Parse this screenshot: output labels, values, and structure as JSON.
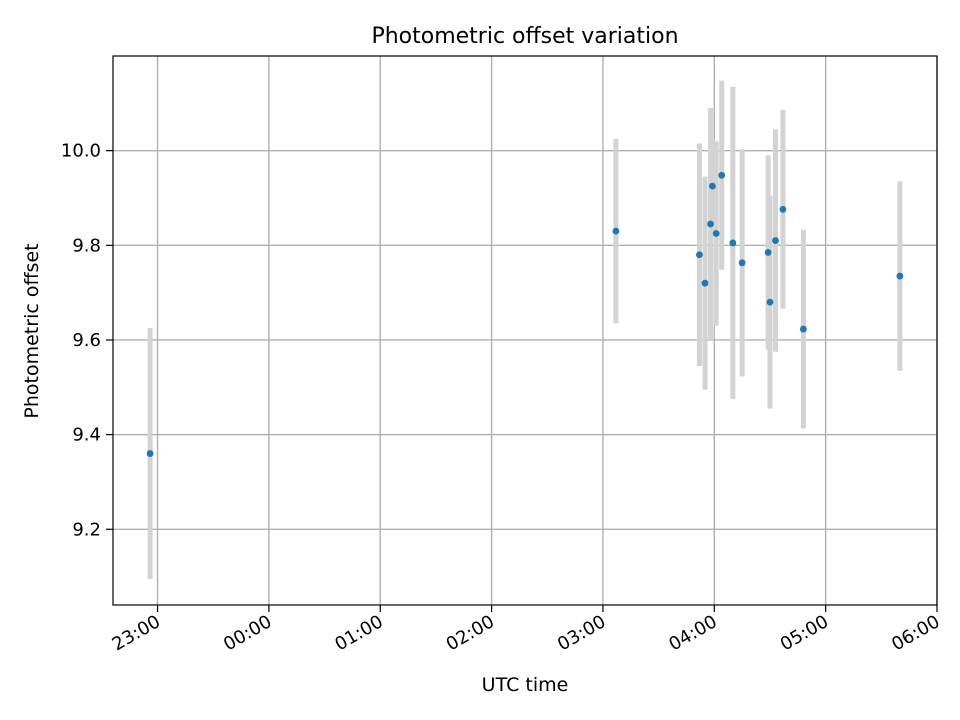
{
  "chart_data": {
    "type": "scatter",
    "title": "Photometric offset variation",
    "xlabel": "UTC time",
    "ylabel": "Photometric offset",
    "grid": true,
    "xlim": [
      "22:36",
      "06:00"
    ],
    "ylim": [
      9.04,
      10.2
    ],
    "x_ticks": [
      "23:00",
      "00:00",
      "01:00",
      "02:00",
      "03:00",
      "04:00",
      "05:00",
      "06:00"
    ],
    "y_ticks": [
      "9.2",
      "9.4",
      "9.6",
      "9.8",
      "10.0"
    ],
    "colors": {
      "points": "#1f77b4",
      "errorbars": "#d3d3d3",
      "grid": "#b0b0b0"
    },
    "series": [
      {
        "points": [
          {
            "x": "22:56",
            "y": 9.36,
            "err": 0.265
          },
          {
            "x": "03:07",
            "y": 9.83,
            "err": 0.195
          },
          {
            "x": "03:52",
            "y": 9.78,
            "err": 0.235
          },
          {
            "x": "03:55",
            "y": 9.72,
            "err": 0.225
          },
          {
            "x": "03:58",
            "y": 9.845,
            "err": 0.245
          },
          {
            "x": "03:59",
            "y": 9.925,
            "err": 0.1
          },
          {
            "x": "04:01",
            "y": 9.825,
            "err": 0.195
          },
          {
            "x": "04:04",
            "y": 9.948,
            "err": 0.2
          },
          {
            "x": "04:10",
            "y": 9.805,
            "err": 0.33
          },
          {
            "x": "04:15",
            "y": 9.763,
            "err": 0.24
          },
          {
            "x": "04:29",
            "y": 9.785,
            "err": 0.205
          },
          {
            "x": "04:30",
            "y": 9.68,
            "err": 0.225
          },
          {
            "x": "04:33",
            "y": 9.81,
            "err": 0.235
          },
          {
            "x": "04:37",
            "y": 9.876,
            "err": 0.21
          },
          {
            "x": "04:48",
            "y": 9.623,
            "err": 0.21
          },
          {
            "x": "05:40",
            "y": 9.735,
            "err": 0.2
          }
        ]
      }
    ]
  }
}
